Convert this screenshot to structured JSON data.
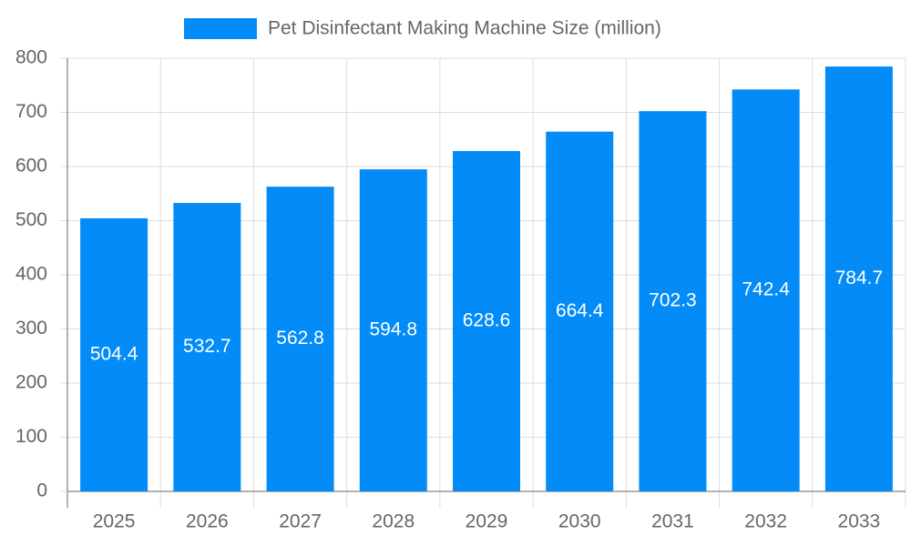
{
  "chart_data": {
    "type": "bar",
    "categories": [
      "2025",
      "2026",
      "2027",
      "2028",
      "2029",
      "2030",
      "2031",
      "2032",
      "2033"
    ],
    "series": [
      {
        "name": "Pet Disinfectant Making Machine Size (million)",
        "color": "#038cf8",
        "values": [
          504.4,
          532.7,
          562.8,
          594.8,
          628.6,
          664.4,
          702.3,
          742.4,
          784.7
        ]
      }
    ],
    "ylim": [
      0,
      800
    ],
    "yticks": [
      0,
      100,
      200,
      300,
      400,
      500,
      600,
      700,
      800
    ],
    "grid": true
  }
}
